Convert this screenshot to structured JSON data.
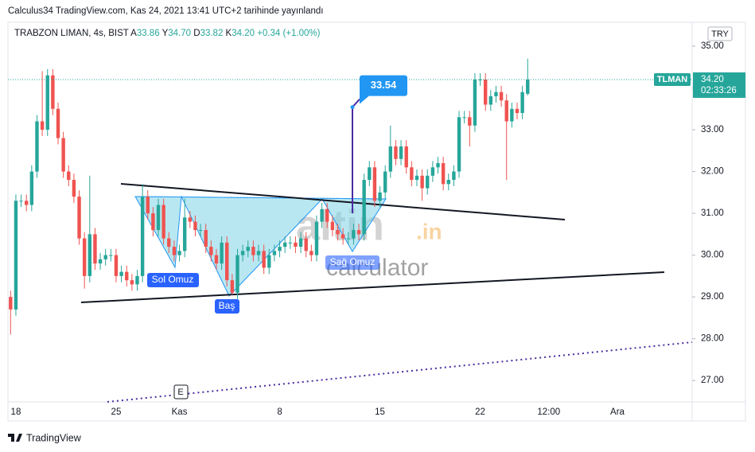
{
  "header": {
    "published": "Calculus34 TradingView.com, Kas 24, 2021 13:41 UTC+2 tarihinde yayınlandı"
  },
  "footer": {
    "brand": "TradingView"
  },
  "chart_data": {
    "type": "candlestick",
    "title": "TRABZON LIMAN, 4s, BIST",
    "ohlc_legend": [
      {
        "label": "A",
        "value": "33.86"
      },
      {
        "label": "Y",
        "value": "34.70"
      },
      {
        "label": "D",
        "value": "33.82"
      },
      {
        "label": "K",
        "value": "34.20"
      }
    ],
    "change": "+0.34 (+1.00%)",
    "currency": "TRY",
    "symbol_tag": "TLMAN",
    "last_price": {
      "value": 34.2,
      "label": "34.20"
    },
    "countdown": "02:33:26",
    "callout": 33.54,
    "pattern_labels": [
      "Sol Omuz",
      "Baş",
      "Sağ Omuz"
    ],
    "event_marker": "E",
    "watermark": [
      "altin",
      ".in",
      "calculator"
    ],
    "up_color": "#26a69a",
    "down_color": "#ef5350",
    "ylim": [
      26.49,
      35.57
    ],
    "yticks": [
      {
        "value": 27,
        "label": "27.00"
      },
      {
        "value": 28,
        "label": "28.00"
      },
      {
        "value": 29,
        "label": "29.00"
      },
      {
        "value": 30,
        "label": "30.00"
      },
      {
        "value": 31,
        "label": "31.00"
      },
      {
        "value": 32,
        "label": "32.00"
      },
      {
        "value": 33,
        "label": "33.00"
      },
      {
        "value": 34,
        "label": "34.00"
      },
      {
        "value": 35,
        "label": "35.00"
      }
    ],
    "categories": [
      null,
      "18",
      null,
      null,
      null,
      null,
      null,
      null,
      null,
      null,
      null,
      null,
      null,
      null,
      null,
      null,
      null,
      null,
      null,
      null,
      "25",
      null,
      null,
      null,
      null,
      null,
      null,
      null,
      null,
      null,
      null,
      null,
      "Kas",
      null,
      null,
      null,
      null,
      null,
      null,
      null,
      null,
      null,
      null,
      null,
      null,
      null,
      null,
      null,
      null,
      null,
      null,
      "8",
      null,
      null,
      null,
      null,
      null,
      null,
      null,
      null,
      null,
      null,
      null,
      null,
      null,
      null,
      null,
      null,
      null,
      null,
      "15",
      null,
      null,
      null,
      null,
      null,
      null,
      null,
      null,
      null,
      null,
      null,
      null,
      null,
      null,
      null,
      null,
      null,
      null,
      "22",
      null,
      null,
      null,
      null,
      null,
      null,
      null,
      null,
      null,
      null,
      null,
      null,
      "12:00",
      null,
      null,
      null,
      null,
      null,
      null,
      null,
      null,
      null,
      null,
      null,
      null,
      "Ara"
    ],
    "open": [
      29.0,
      28.7,
      31.3,
      31.3,
      31.2,
      32.0,
      33.2,
      33.0,
      34.3,
      33.5,
      32.8,
      32.0,
      31.8,
      31.4,
      30.4,
      29.5,
      30.5,
      29.8,
      29.9,
      30.0,
      30.0,
      29.5,
      29.6,
      29.4,
      29.3,
      29.5,
      31.4,
      31.0,
      30.6,
      31.2,
      30.4,
      30.2,
      30.0,
      30.1,
      30.9,
      30.8,
      30.6,
      30.6,
      30.2,
      30.0,
      29.8,
      30.3,
      29.4,
      29.1,
      30.0,
      30.1,
      30.2,
      30.0,
      30.1,
      29.7,
      30.0,
      30.1,
      30.2,
      30.3,
      30.3,
      30.2,
      30.4,
      30.1,
      30.0,
      30.8,
      31.1,
      30.8,
      30.6,
      30.5,
      30.4,
      30.4,
      30.6,
      30.5,
      31.8,
      32.1,
      31.3,
      31.5,
      32.0,
      32.6,
      32.3,
      32.6,
      32.1,
      31.8,
      31.9,
      31.6,
      31.9,
      32.1,
      32.2,
      31.7,
      31.8,
      32.0,
      33.3,
      33.3,
      33.1,
      34.2,
      34.2,
      33.6,
      33.8,
      33.9,
      33.7,
      33.2,
      33.5,
      33.4,
      33.86,
      null,
      null,
      null,
      null,
      null,
      null,
      null,
      null,
      null,
      null,
      null,
      null,
      null,
      null,
      null,
      null,
      null
    ],
    "high": [
      29.15,
      31.45,
      31.45,
      31.45,
      32.15,
      33.35,
      34.4,
      34.45,
      34.45,
      33.65,
      32.95,
      32.15,
      31.95,
      31.55,
      30.55,
      31.9,
      30.65,
      30.05,
      30.15,
      30.15,
      30.15,
      29.75,
      29.75,
      29.55,
      29.65,
      31.7,
      31.55,
      31.15,
      31.35,
      31.35,
      30.55,
      30.35,
      30.25,
      31.35,
      31.05,
      30.95,
      30.75,
      30.75,
      30.35,
      30.15,
      30.45,
      30.45,
      29.55,
      30.15,
      30.25,
      30.35,
      30.35,
      30.25,
      30.25,
      30.15,
      30.25,
      30.35,
      30.45,
      30.45,
      30.45,
      30.55,
      30.55,
      30.25,
      30.95,
      31.25,
      31.25,
      30.95,
      30.75,
      30.65,
      30.55,
      30.75,
      30.75,
      31.95,
      32.25,
      32.25,
      31.65,
      32.15,
      33.1,
      32.75,
      32.75,
      32.75,
      32.25,
      32.05,
      32.05,
      32.05,
      32.25,
      32.35,
      32.35,
      31.95,
      32.15,
      33.45,
      33.45,
      33.45,
      34.35,
      34.35,
      34.35,
      33.95,
      34.05,
      34.05,
      33.85,
      33.65,
      33.65,
      34.05,
      34.7,
      null,
      null,
      null,
      null,
      null,
      null,
      null,
      null,
      null,
      null,
      null,
      null,
      null,
      null,
      null,
      null,
      null
    ],
    "low": [
      28.1,
      28.55,
      31.15,
      31.05,
      31.05,
      31.85,
      32.85,
      32.85,
      33.35,
      32.65,
      31.85,
      31.65,
      31.25,
      30.25,
      29.2,
      29.35,
      29.65,
      29.65,
      29.75,
      29.85,
      29.35,
      29.35,
      29.25,
      29.15,
      29.15,
      29.35,
      30.85,
      30.45,
      30.45,
      30.25,
      30.05,
      29.85,
      29.85,
      29.95,
      30.65,
      30.45,
      30.45,
      30.05,
      29.85,
      29.65,
      29.65,
      29.25,
      29.05,
      28.95,
      29.85,
      29.95,
      29.85,
      29.85,
      29.55,
      29.55,
      29.85,
      29.95,
      30.05,
      30.15,
      30.05,
      30.05,
      29.95,
      29.85,
      29.85,
      30.65,
      30.65,
      30.45,
      30.35,
      30.25,
      30.25,
      30.25,
      30.35,
      30.35,
      31.65,
      31.15,
      31.15,
      31.35,
      31.85,
      32.15,
      32.15,
      31.95,
      31.65,
      31.65,
      31.3,
      31.45,
      31.75,
      31.95,
      31.55,
      31.55,
      31.65,
      31.85,
      33.15,
      32.6,
      32.95,
      34.05,
      33.45,
      33.45,
      33.65,
      33.55,
      31.8,
      33.05,
      33.25,
      33.25,
      33.82,
      null,
      null,
      null,
      null,
      null,
      null,
      null,
      null,
      null,
      null,
      null,
      null,
      null,
      null,
      null,
      null,
      null
    ],
    "close": [
      28.7,
      31.3,
      31.3,
      31.2,
      32.0,
      33.2,
      33.0,
      34.3,
      33.5,
      32.8,
      32.0,
      31.8,
      31.4,
      30.4,
      29.5,
      30.5,
      29.8,
      29.9,
      30.0,
      30.0,
      29.5,
      29.6,
      29.4,
      29.3,
      29.5,
      31.4,
      31.0,
      30.6,
      31.2,
      30.4,
      30.2,
      30.0,
      30.1,
      30.9,
      30.8,
      30.6,
      30.6,
      30.2,
      30.0,
      29.8,
      30.3,
      29.4,
      29.1,
      30.0,
      30.1,
      30.2,
      30.0,
      30.1,
      29.7,
      30.0,
      30.1,
      30.2,
      30.3,
      30.3,
      30.2,
      30.4,
      30.1,
      30.0,
      30.8,
      31.1,
      30.8,
      30.6,
      30.5,
      30.4,
      30.4,
      30.6,
      30.5,
      31.8,
      32.1,
      31.3,
      31.5,
      32.0,
      32.6,
      32.3,
      32.6,
      32.1,
      31.8,
      31.9,
      31.6,
      31.9,
      32.1,
      32.2,
      31.7,
      31.8,
      32.0,
      33.3,
      33.3,
      33.1,
      34.2,
      34.2,
      33.6,
      33.8,
      33.9,
      33.7,
      33.2,
      33.5,
      33.4,
      33.9,
      34.2,
      null,
      null,
      null,
      null,
      null,
      null,
      null,
      null,
      null,
      null,
      null,
      null,
      null,
      null,
      null,
      null,
      null
    ]
  }
}
